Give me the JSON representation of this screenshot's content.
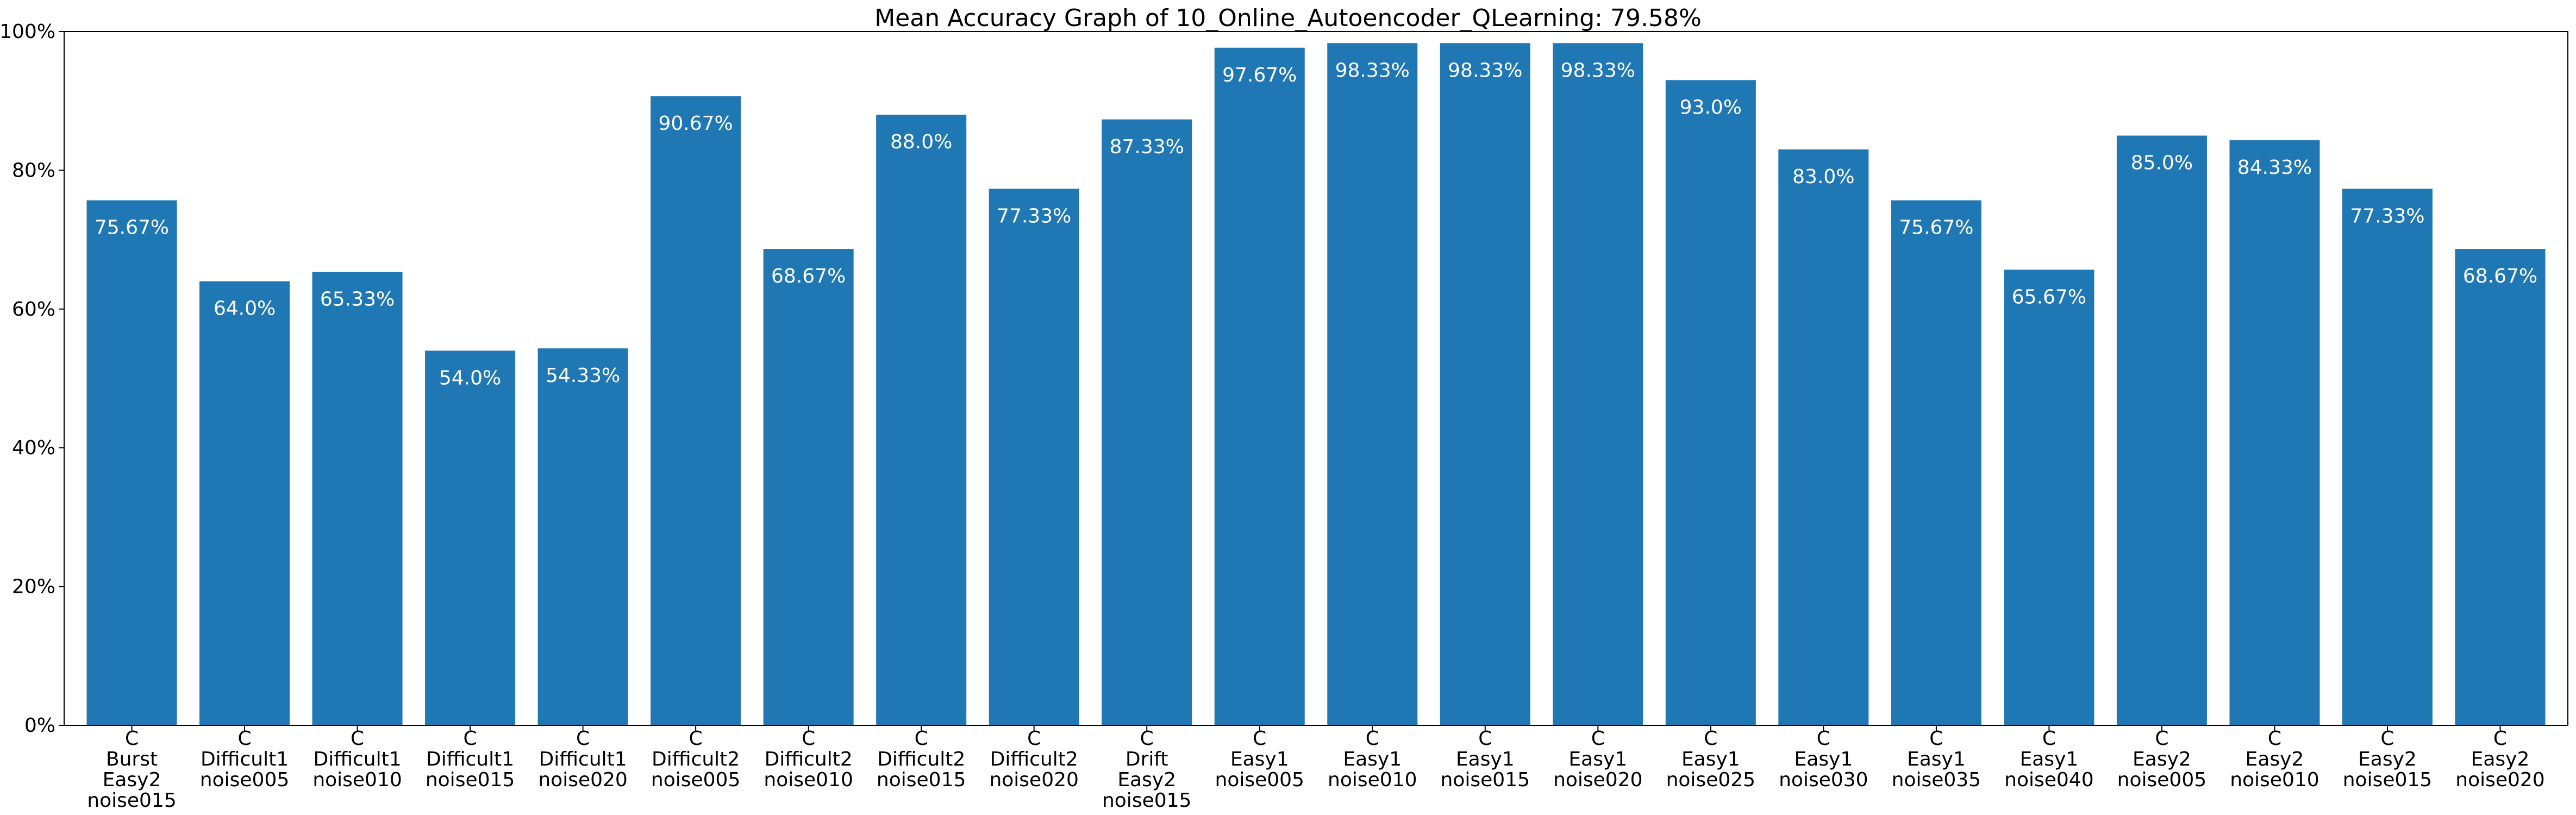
{
  "chart_data": {
    "type": "bar",
    "title": "Mean Accuracy Graph of 10_Online_Autoencoder_QLearning: 79.58%",
    "xlabel": "",
    "ylabel": "",
    "ylim": [
      0,
      100
    ],
    "yticks": [
      0,
      20,
      40,
      60,
      80,
      100
    ],
    "ytick_labels": [
      "0%",
      "20%",
      "40%",
      "60%",
      "80%",
      "100%"
    ],
    "grid": false,
    "bar_color": "#1f77b4",
    "categories": [
      [
        "C",
        "Burst",
        "Easy2",
        "noise015"
      ],
      [
        "C",
        "Difficult1",
        "noise005"
      ],
      [
        "C",
        "Difficult1",
        "noise010"
      ],
      [
        "C",
        "Difficult1",
        "noise015"
      ],
      [
        "C",
        "Difficult1",
        "noise020"
      ],
      [
        "C",
        "Difficult2",
        "noise005"
      ],
      [
        "C",
        "Difficult2",
        "noise010"
      ],
      [
        "C",
        "Difficult2",
        "noise015"
      ],
      [
        "C",
        "Difficult2",
        "noise020"
      ],
      [
        "C",
        "Drift",
        "Easy2",
        "noise015"
      ],
      [
        "C",
        "Easy1",
        "noise005"
      ],
      [
        "C",
        "Easy1",
        "noise010"
      ],
      [
        "C",
        "Easy1",
        "noise015"
      ],
      [
        "C",
        "Easy1",
        "noise020"
      ],
      [
        "C",
        "Easy1",
        "noise025"
      ],
      [
        "C",
        "Easy1",
        "noise030"
      ],
      [
        "C",
        "Easy1",
        "noise035"
      ],
      [
        "C",
        "Easy1",
        "noise040"
      ],
      [
        "C",
        "Easy2",
        "noise005"
      ],
      [
        "C",
        "Easy2",
        "noise010"
      ],
      [
        "C",
        "Easy2",
        "noise015"
      ],
      [
        "C",
        "Easy2",
        "noise020"
      ]
    ],
    "values": [
      75.67,
      64.0,
      65.33,
      54.0,
      54.33,
      90.67,
      68.67,
      88.0,
      77.33,
      87.33,
      97.67,
      98.33,
      98.33,
      98.33,
      93.0,
      83.0,
      75.67,
      65.67,
      85.0,
      84.33,
      77.33,
      68.67
    ],
    "value_labels": [
      "75.67%",
      "64.0%",
      "65.33%",
      "54.0%",
      "54.33%",
      "90.67%",
      "68.67%",
      "88.0%",
      "77.33%",
      "87.33%",
      "97.67%",
      "98.33%",
      "98.33%",
      "98.33%",
      "93.0%",
      "83.0%",
      "75.67%",
      "65.67%",
      "85.0%",
      "84.33%",
      "77.33%",
      "68.67%"
    ]
  }
}
